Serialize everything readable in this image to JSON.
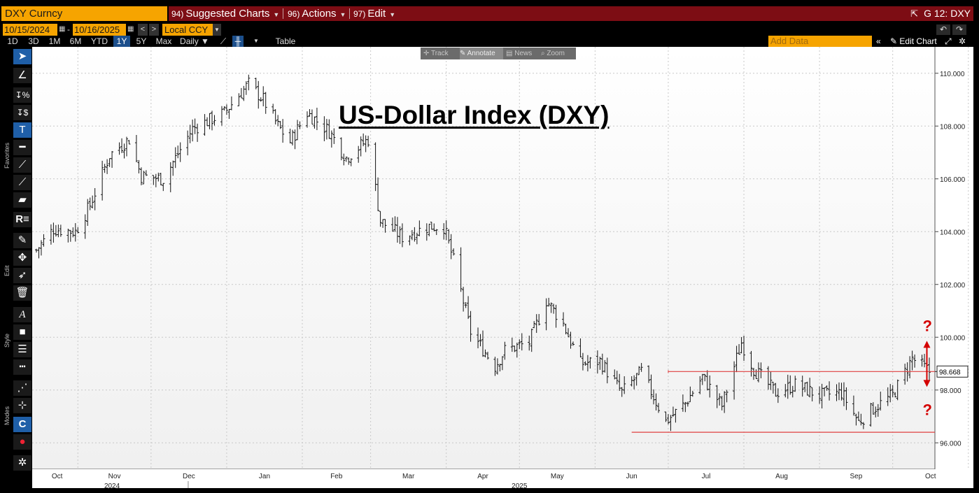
{
  "header": {
    "ticker": "DXY Curncy",
    "menu": [
      {
        "num": "94)",
        "label": "Suggested Charts"
      },
      {
        "num": "96)",
        "label": "Actions"
      },
      {
        "num": "97)",
        "label": "Edit"
      }
    ],
    "chart_id": "G 12: DXY",
    "colors": {
      "accent": "#f6a400",
      "menu_bg": "#7d0d14",
      "active": "#1c4f8c"
    }
  },
  "datebar": {
    "start_date": "10/15/2024",
    "end_date": "10/16/2025",
    "currency": "Local CCY"
  },
  "rangebar": {
    "ranges": [
      "1D",
      "3D",
      "1M",
      "6M",
      "YTD",
      "1Y",
      "5Y",
      "Max"
    ],
    "active_range": "1Y",
    "frequency": "Daily ▼",
    "table_label": "Table",
    "add_data_placeholder": "Add Data",
    "edit_chart_label": "Edit Chart"
  },
  "floating_toolbar": {
    "items": [
      "Track",
      "Annotate",
      "News",
      "Zoom"
    ],
    "active": "Annotate"
  },
  "sidebar": {
    "sections": [
      "Favorites",
      "Edit",
      "Style",
      "Modes"
    ]
  },
  "annotation": {
    "title": "US-Dollar Index (DXY)",
    "question_marks": [
      "?",
      "?"
    ]
  },
  "chart_data": {
    "type": "ohlc",
    "title": "US-Dollar Index (DXY)",
    "last_price_label": "98.668",
    "ylim": [
      95.0,
      111.5
    ],
    "y_ticks": [
      "96.000",
      "98.000",
      "100.000",
      "102.000",
      "104.000",
      "106.000",
      "108.000",
      "110.000"
    ],
    "x_month_labels": [
      "Oct",
      "Nov",
      "Dec",
      "Jan",
      "Feb",
      "Mar",
      "Apr",
      "May",
      "Jun",
      "Jul",
      "Aug",
      "Sep",
      "Oct"
    ],
    "x_year_labels": [
      "2024",
      "2025"
    ],
    "grid": true,
    "support_lines": [
      {
        "level": 98.7,
        "from": "2025-07-01",
        "to": "2025-10-16",
        "color": "#e04040"
      },
      {
        "level": 96.4,
        "from": "2025-06-16",
        "to": "2025-10-16",
        "color": "#e04040"
      }
    ],
    "anchors": [
      {
        "date": "2024-10-15",
        "close": 103.3
      },
      {
        "date": "2024-10-22",
        "close": 104.1
      },
      {
        "date": "2024-10-31",
        "close": 104.0
      },
      {
        "date": "2024-11-06",
        "close": 105.0
      },
      {
        "date": "2024-11-14",
        "close": 106.9
      },
      {
        "date": "2024-11-22",
        "close": 107.5
      },
      {
        "date": "2024-11-27",
        "close": 106.1
      },
      {
        "date": "2024-12-06",
        "close": 106.0
      },
      {
        "date": "2024-12-18",
        "close": 107.9
      },
      {
        "date": "2024-12-31",
        "close": 108.5
      },
      {
        "date": "2025-01-10",
        "close": 109.6
      },
      {
        "date": "2025-01-16",
        "close": 109.0
      },
      {
        "date": "2025-01-22",
        "close": 108.0
      },
      {
        "date": "2025-01-27",
        "close": 107.4
      },
      {
        "date": "2025-02-03",
        "close": 108.5
      },
      {
        "date": "2025-02-12",
        "close": 107.8
      },
      {
        "date": "2025-02-19",
        "close": 106.8
      },
      {
        "date": "2025-02-28",
        "close": 107.5
      },
      {
        "date": "2025-03-05",
        "close": 104.4
      },
      {
        "date": "2025-03-14",
        "close": 103.8
      },
      {
        "date": "2025-03-25",
        "close": 104.2
      },
      {
        "date": "2025-03-31",
        "close": 104.2
      },
      {
        "date": "2025-04-04",
        "close": 102.9
      },
      {
        "date": "2025-04-11",
        "close": 100.2
      },
      {
        "date": "2025-04-21",
        "close": 98.9
      },
      {
        "date": "2025-04-25",
        "close": 99.5
      },
      {
        "date": "2025-05-05",
        "close": 99.8
      },
      {
        "date": "2025-05-12",
        "close": 101.4
      },
      {
        "date": "2025-05-19",
        "close": 100.5
      },
      {
        "date": "2025-05-26",
        "close": 99.0
      },
      {
        "date": "2025-06-03",
        "close": 99.1
      },
      {
        "date": "2025-06-12",
        "close": 97.9
      },
      {
        "date": "2025-06-20",
        "close": 98.7
      },
      {
        "date": "2025-06-30",
        "close": 96.8
      },
      {
        "date": "2025-07-08",
        "close": 97.5
      },
      {
        "date": "2025-07-15",
        "close": 98.5
      },
      {
        "date": "2025-07-23",
        "close": 97.4
      },
      {
        "date": "2025-07-31",
        "close": 99.8
      },
      {
        "date": "2025-08-05",
        "close": 98.8
      },
      {
        "date": "2025-08-14",
        "close": 97.9
      },
      {
        "date": "2025-08-22",
        "close": 98.2
      },
      {
        "date": "2025-09-01",
        "close": 97.8
      },
      {
        "date": "2025-09-10",
        "close": 97.9
      },
      {
        "date": "2025-09-17",
        "close": 96.8
      },
      {
        "date": "2025-09-23",
        "close": 97.3
      },
      {
        "date": "2025-10-01",
        "close": 97.8
      },
      {
        "date": "2025-10-09",
        "close": 99.2
      },
      {
        "date": "2025-10-16",
        "close": 98.7
      }
    ]
  }
}
